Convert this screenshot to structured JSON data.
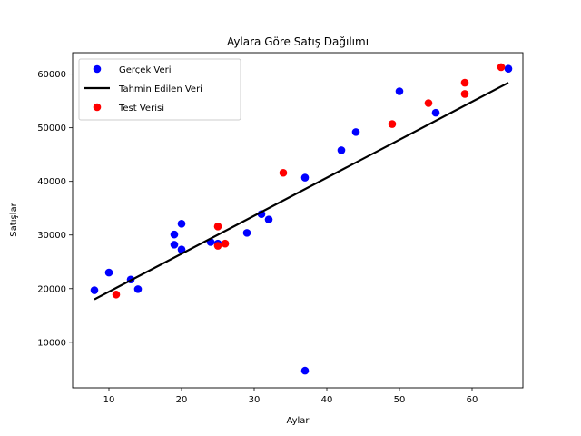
{
  "chart_data": {
    "type": "scatter",
    "title": "Aylara Göre Satış Dağılımı",
    "xlabel": "Aylar",
    "ylabel": "Satışlar",
    "xlim": [
      5,
      67
    ],
    "ylim": [
      1500,
      64000
    ],
    "xticks": [
      10,
      20,
      30,
      40,
      50,
      60
    ],
    "yticks": [
      10000,
      20000,
      30000,
      40000,
      50000,
      60000
    ],
    "legend_position": "upper-left",
    "series": [
      {
        "name": "Gerçek Veri",
        "kind": "scatter",
        "color": "#0000ff",
        "points": [
          [
            8,
            19700
          ],
          [
            10,
            23000
          ],
          [
            13,
            21700
          ],
          [
            14,
            19900
          ],
          [
            19,
            30100
          ],
          [
            19,
            28200
          ],
          [
            20,
            32100
          ],
          [
            20,
            27300
          ],
          [
            24,
            28700
          ],
          [
            25,
            28400
          ],
          [
            29,
            30400
          ],
          [
            31,
            33900
          ],
          [
            32,
            32900
          ],
          [
            37,
            40700
          ],
          [
            37,
            4700
          ],
          [
            42,
            45800
          ],
          [
            44,
            49200
          ],
          [
            50,
            56800
          ],
          [
            55,
            52800
          ],
          [
            65,
            61000
          ]
        ]
      },
      {
        "name": "Tahmin Edilen Veri",
        "kind": "line",
        "color": "#000000",
        "points": [
          [
            8,
            18000
          ],
          [
            65,
            58400
          ]
        ]
      },
      {
        "name": "Test Verisi",
        "kind": "scatter",
        "color": "#ff0000",
        "points": [
          [
            11,
            18900
          ],
          [
            25,
            31600
          ],
          [
            25,
            28000
          ],
          [
            26,
            28400
          ],
          [
            34,
            41600
          ],
          [
            49,
            50700
          ],
          [
            54,
            54600
          ],
          [
            59,
            58400
          ],
          [
            59,
            56300
          ],
          [
            64,
            61300
          ]
        ]
      }
    ]
  }
}
